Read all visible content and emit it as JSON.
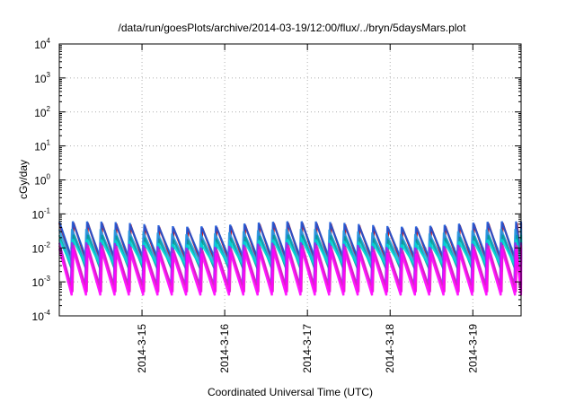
{
  "chart_data": {
    "type": "line",
    "title": "/data/run/goesPlots/archive/2014-03-19/12:00/flux/../bryn/5daysMars.plot",
    "xlabel": "Coordinated Universal Time (UTC)",
    "ylabel": "cGy/day",
    "yscale": "log",
    "ylim": [
      0.0001,
      10000
    ],
    "xlim": [
      "2014-03-14 00:00",
      "2014-03-19 14:00"
    ],
    "x_ticks": [
      "2014-3-15",
      "2014-3-16",
      "2014-3-17",
      "2014-3-18",
      "2014-3-19"
    ],
    "y_ticks": [
      {
        "base": "10",
        "exp": "-4"
      },
      {
        "base": "10",
        "exp": "-3"
      },
      {
        "base": "10",
        "exp": "-2"
      },
      {
        "base": "10",
        "exp": "-1"
      },
      {
        "base": "10",
        "exp": "0"
      },
      {
        "base": "10",
        "exp": "1"
      },
      {
        "base": "10",
        "exp": "2"
      },
      {
        "base": "10",
        "exp": "3"
      },
      {
        "base": "10",
        "exp": "4"
      }
    ],
    "grid": true,
    "sawtooth_period_hours": 4.15,
    "series": [
      {
        "color": "#d00000",
        "peak": 0.045,
        "trough": 0.0035
      },
      {
        "color": "#1a56d8",
        "peak": 0.05,
        "trough": 0.005
      },
      {
        "color": "#2b9be0",
        "peak": 0.03,
        "trough": 0.004
      },
      {
        "color": "#00a0a0",
        "peak": 0.02,
        "trough": 0.002
      },
      {
        "color": "#00d8d8",
        "peak": 0.015,
        "trough": 0.003
      },
      {
        "color": "#a020f0",
        "peak": 0.012,
        "trough": 0.0008
      },
      {
        "color": "#e020c0",
        "peak": 0.01,
        "trough": 0.0005
      },
      {
        "color": "#ff00ff",
        "peak": 0.008,
        "trough": 0.0004
      }
    ]
  }
}
